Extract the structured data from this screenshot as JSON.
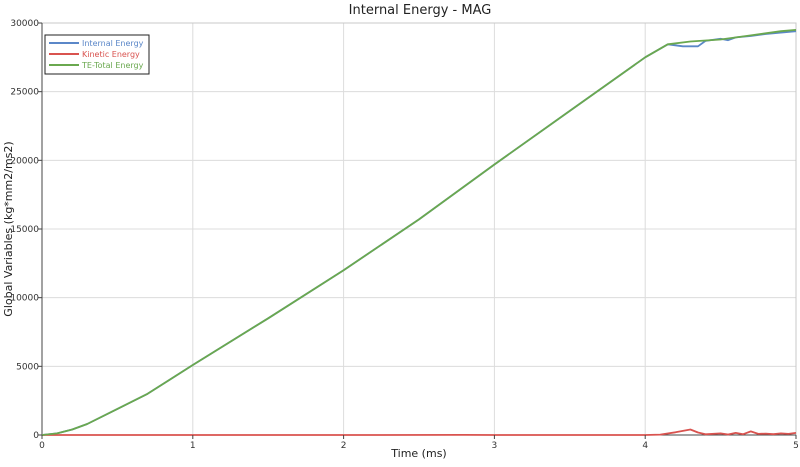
{
  "chart_data": {
    "type": "line",
    "title": "Internal Energy - MAG",
    "xlabel": "Time (ms)",
    "ylabel": "Global Variables (kg*mm2/ms2)",
    "xlim": [
      0,
      5
    ],
    "ylim": [
      0,
      30000
    ],
    "x_ticks": [
      0,
      1,
      2,
      3,
      4,
      5
    ],
    "y_ticks": [
      0,
      5000,
      10000,
      15000,
      20000,
      25000,
      30000
    ],
    "grid": true,
    "legend": "top-left",
    "series": [
      {
        "name": "Internal Energy",
        "color": "#5b87c8",
        "points": [
          [
            0,
            0
          ],
          [
            0.1,
            120
          ],
          [
            0.2,
            400
          ],
          [
            0.3,
            800
          ],
          [
            0.5,
            1900
          ],
          [
            0.7,
            3000
          ],
          [
            1.0,
            5100
          ],
          [
            1.5,
            8500
          ],
          [
            2.0,
            12000
          ],
          [
            2.5,
            15700
          ],
          [
            3.0,
            19700
          ],
          [
            3.5,
            23600
          ],
          [
            4.0,
            27500
          ],
          [
            4.15,
            28450
          ],
          [
            4.25,
            28300
          ],
          [
            4.35,
            28300
          ],
          [
            4.4,
            28700
          ],
          [
            4.5,
            28850
          ],
          [
            4.55,
            28750
          ],
          [
            4.6,
            28950
          ],
          [
            4.7,
            29050
          ],
          [
            4.8,
            29200
          ],
          [
            4.9,
            29300
          ],
          [
            5.0,
            29400
          ]
        ]
      },
      {
        "name": "Kinetic Energy",
        "color": "#d9534f",
        "points": [
          [
            0,
            0
          ],
          [
            1.0,
            0
          ],
          [
            2.0,
            0
          ],
          [
            2.8,
            10
          ],
          [
            3.0,
            0
          ],
          [
            4.0,
            0
          ],
          [
            4.1,
            30
          ],
          [
            4.2,
            200
          ],
          [
            4.3,
            400
          ],
          [
            4.35,
            180
          ],
          [
            4.4,
            50
          ],
          [
            4.5,
            120
          ],
          [
            4.55,
            40
          ],
          [
            4.6,
            150
          ],
          [
            4.65,
            60
          ],
          [
            4.7,
            260
          ],
          [
            4.75,
            80
          ],
          [
            4.8,
            100
          ],
          [
            4.85,
            60
          ],
          [
            4.9,
            120
          ],
          [
            4.95,
            80
          ],
          [
            5.0,
            150
          ]
        ]
      },
      {
        "name": "TE-Total Energy",
        "color": "#6aa84f",
        "points": [
          [
            0,
            0
          ],
          [
            0.1,
            120
          ],
          [
            0.2,
            400
          ],
          [
            0.3,
            800
          ],
          [
            0.5,
            1900
          ],
          [
            0.7,
            3000
          ],
          [
            1.0,
            5100
          ],
          [
            1.5,
            8500
          ],
          [
            2.0,
            12000
          ],
          [
            2.5,
            15700
          ],
          [
            3.0,
            19700
          ],
          [
            3.5,
            23600
          ],
          [
            4.0,
            27500
          ],
          [
            4.15,
            28450
          ],
          [
            4.3,
            28650
          ],
          [
            4.5,
            28800
          ],
          [
            4.7,
            29100
          ],
          [
            4.9,
            29400
          ],
          [
            5.0,
            29500
          ]
        ]
      }
    ]
  }
}
